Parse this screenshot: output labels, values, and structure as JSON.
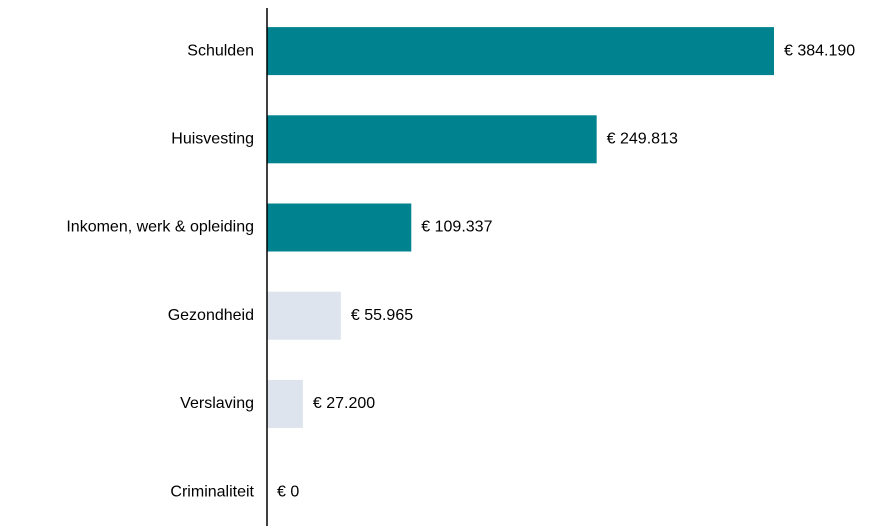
{
  "chart_data": {
    "type": "barh",
    "categories": [
      "Schulden",
      "Huisvesting",
      "Inkomen, werk & opleiding",
      "Gezondheid",
      "Verslaving",
      "Criminaliteit"
    ],
    "values": [
      384190,
      249813,
      109337,
      55965,
      27200,
      0
    ],
    "value_labels": [
      "€ 384.190",
      "€ 249.813",
      "€ 109.337",
      "€ 55.965",
      "€ 27.200",
      "€ 0"
    ],
    "colors": [
      "#00838f",
      "#00838f",
      "#00838f",
      "#dde4ee",
      "#dde4ee",
      "#dde4ee"
    ]
  }
}
